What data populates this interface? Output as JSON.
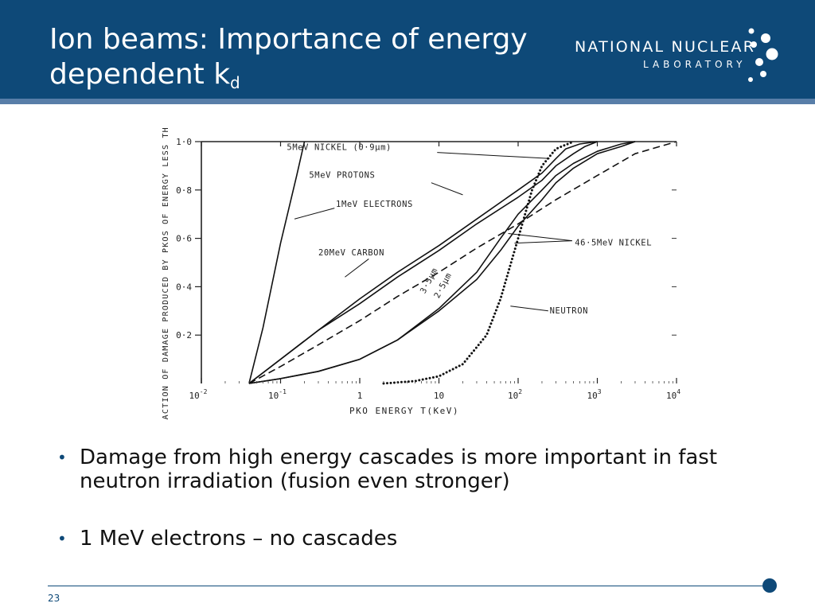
{
  "slide": {
    "title_main": "Ion beams: Importance of energy dependent k",
    "title_sub": "d",
    "logo": {
      "line1": "NATIONAL NUCLEAR",
      "line2": "LABORATORY"
    },
    "bullets": [
      "Damage from high energy cascades is more important in fast neutron irradiation (fusion even stronger)",
      "1 MeV electrons – no cascades"
    ],
    "page_number": "23",
    "colors": {
      "header": "#0e4978",
      "header_rule": "#587ea8",
      "accent": "#0e4978"
    }
  },
  "chart_data": {
    "type": "line",
    "xlabel": "PKO ENERGY T(KeV)",
    "ylabel": "FRACTION OF DAMAGE PRODUCED BY PKOS OF ENERGY LESS THAN T",
    "x_scale": "log",
    "xlim": [
      0.01,
      10000
    ],
    "ylim": [
      0,
      1.0
    ],
    "x_ticks": [
      {
        "value": 0.01,
        "base": "10",
        "exp": "-2"
      },
      {
        "value": 0.1,
        "base": "10",
        "exp": "-1"
      },
      {
        "value": 1,
        "base": "1",
        "exp": ""
      },
      {
        "value": 10,
        "base": "10",
        "exp": ""
      },
      {
        "value": 100,
        "base": "10",
        "exp": "2"
      },
      {
        "value": 1000,
        "base": "10",
        "exp": "3"
      },
      {
        "value": 10000,
        "base": "10",
        "exp": "4"
      }
    ],
    "y_ticks": [
      {
        "value": 0.2,
        "label": "0·2"
      },
      {
        "value": 0.4,
        "label": "0·4"
      },
      {
        "value": 0.6,
        "label": "0·6"
      },
      {
        "value": 0.8,
        "label": "0·8"
      },
      {
        "value": 1.0,
        "label": "1·0"
      }
    ],
    "series": [
      {
        "name": "1MeV ELECTRONS",
        "style": "solid",
        "x": [
          0.04,
          0.06,
          0.1,
          0.16,
          0.2
        ],
        "y": [
          0,
          0.23,
          0.58,
          0.86,
          1.0
        ]
      },
      {
        "name": "5MeV NICKEL (0·9µm)",
        "style": "solid",
        "x": [
          0.04,
          0.1,
          0.3,
          1,
          3,
          10,
          30,
          100,
          200,
          300,
          400,
          600,
          1000
        ],
        "y": [
          0,
          0.1,
          0.22,
          0.35,
          0.46,
          0.57,
          0.68,
          0.8,
          0.87,
          0.93,
          0.97,
          0.99,
          1.0
        ]
      },
      {
        "name": "5MeV PROTONS",
        "style": "solid",
        "x": [
          0.04,
          0.1,
          0.3,
          1,
          3,
          10,
          30,
          100,
          200,
          300,
          500,
          700,
          1000
        ],
        "y": [
          0,
          0.1,
          0.22,
          0.33,
          0.44,
          0.55,
          0.66,
          0.77,
          0.84,
          0.9,
          0.95,
          0.98,
          1.0
        ]
      },
      {
        "name": "20MeV CARBON",
        "style": "dashed",
        "x": [
          0.04,
          0.1,
          0.3,
          1,
          3,
          10,
          30,
          100,
          300,
          1000,
          3000,
          10000
        ],
        "y": [
          0,
          0.07,
          0.16,
          0.26,
          0.36,
          0.46,
          0.56,
          0.66,
          0.76,
          0.86,
          0.95,
          1.0
        ]
      },
      {
        "name": "46·5MeV NICKEL 3·5µm",
        "style": "solid",
        "x": [
          0.04,
          0.1,
          0.3,
          1,
          3,
          10,
          30,
          60,
          100,
          200,
          300,
          500,
          1000,
          2000,
          3000
        ],
        "y": [
          0,
          0.02,
          0.05,
          0.1,
          0.18,
          0.31,
          0.46,
          0.6,
          0.7,
          0.8,
          0.86,
          0.91,
          0.96,
          0.99,
          1.0
        ]
      },
      {
        "name": "46·5MeV NICKEL 2·5µm",
        "style": "solid",
        "x": [
          0.04,
          0.1,
          0.3,
          1,
          3,
          10,
          30,
          60,
          100,
          200,
          300,
          500,
          1000,
          2000,
          3000
        ],
        "y": [
          0,
          0.02,
          0.05,
          0.1,
          0.18,
          0.3,
          0.43,
          0.55,
          0.65,
          0.76,
          0.83,
          0.89,
          0.95,
          0.98,
          1.0
        ]
      },
      {
        "name": "NEUTRON",
        "style": "dotted",
        "x": [
          2,
          5,
          10,
          20,
          40,
          60,
          100,
          150,
          200,
          300,
          500
        ],
        "y": [
          0,
          0.01,
          0.03,
          0.08,
          0.2,
          0.35,
          0.6,
          0.8,
          0.9,
          0.97,
          1.0
        ]
      }
    ],
    "annotations": [
      {
        "label": "5MeV NICKEL (0·9µm)"
      },
      {
        "label": "5MeV PROTONS"
      },
      {
        "label": "1MeV ELECTRONS"
      },
      {
        "label": "20MeV CARBON"
      },
      {
        "label": "3·5µm"
      },
      {
        "label": "2·5µm"
      },
      {
        "label": "46·5MeV NICKEL"
      },
      {
        "label": "NEUTRON"
      }
    ]
  }
}
